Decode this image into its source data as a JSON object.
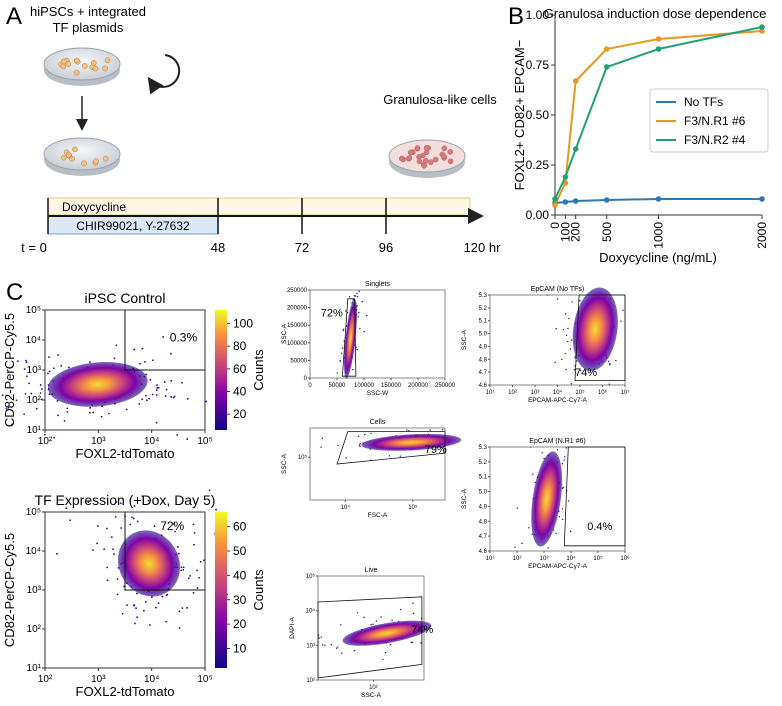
{
  "panel_a": {
    "letter": "A",
    "start_label": [
      "hiPSCs + integrated",
      "TF plasmids"
    ],
    "end_label": "Granulosa-like cells",
    "treatments": [
      "Doxycycline",
      "CHIR99021, Y-27632"
    ],
    "timepoints": [
      "t = 0",
      "48",
      "72",
      "96",
      "120 hr"
    ]
  },
  "chart_data": {
    "type": "line",
    "letter": "B",
    "title": "Granulosa induction dose dependence",
    "x_label": "Doxycycline (ng/mL)",
    "y_label": "FOXL2+ CD82+ EPCAM−",
    "x": [
      0,
      100,
      200,
      500,
      1000,
      2000
    ],
    "series": [
      {
        "name": "No TFs",
        "color": "#2a78b5",
        "values": [
          0.06,
          0.065,
          0.07,
          0.075,
          0.08,
          0.08
        ]
      },
      {
        "name": "F3/N.R1 #6",
        "color": "#e39a1e",
        "values": [
          0.05,
          0.16,
          0.67,
          0.83,
          0.88,
          0.92
        ]
      },
      {
        "name": "F3/N.R2 #4",
        "color": "#21a07a",
        "values": [
          0.08,
          0.19,
          0.33,
          0.74,
          0.83,
          0.94
        ]
      }
    ],
    "xlim": [
      0,
      2000
    ],
    "ylim": [
      0,
      1
    ],
    "xticks": [
      0,
      100,
      200,
      500,
      1000,
      2000
    ],
    "yticks": [
      {
        "value": 0,
        "label": "0.00"
      },
      {
        "value": 0.25,
        "label": "0.25"
      },
      {
        "value": 0.5,
        "label": "0.50"
      },
      {
        "value": 0.75,
        "label": "0.75"
      },
      {
        "value": 1,
        "label": "1.00"
      }
    ],
    "legend": "center right"
  },
  "panel_c": {
    "letter": "C",
    "density_plots": [
      {
        "title": "iPSC Control",
        "x_label": "FOXL2-tdTomato",
        "y_label": "CD82-PerCP-Cy5.5",
        "percent": "0.3%",
        "xlim": [
          100,
          100000
        ],
        "ylim": [
          10,
          100000
        ],
        "xticks": [
          {
            "value": 100,
            "label": "10²"
          },
          {
            "value": 1000,
            "label": "10³"
          },
          {
            "value": 10000,
            "label": "10⁴"
          },
          {
            "value": 100000,
            "label": "10⁵"
          }
        ],
        "yticks": [
          {
            "value": 10,
            "label": "10¹"
          },
          {
            "value": 100,
            "label": "10²"
          },
          {
            "value": 1000,
            "label": "10³"
          },
          {
            "value": 10000,
            "label": "10⁴"
          },
          {
            "value": 100000,
            "label": "10⁵"
          }
        ],
        "colorbar": {
          "label": "Counts",
          "lim": [
            6,
            112
          ],
          "ticks": [
            20,
            40,
            60,
            80,
            100
          ]
        }
      },
      {
        "title": "TF Expression (+Dox, Day 5)",
        "x_label": "FOXL2-tdTomato",
        "y_label": "CD82-PerCP-Cy5.5",
        "percent": "72%",
        "xlim": [
          100,
          100000
        ],
        "ylim": [
          10,
          100000
        ],
        "xticks": [
          {
            "value": 100,
            "label": "10²"
          },
          {
            "value": 1000,
            "label": "10³"
          },
          {
            "value": 10000,
            "label": "10⁴"
          },
          {
            "value": 100000,
            "label": "10⁵"
          }
        ],
        "yticks": [
          {
            "value": 10,
            "label": "10¹"
          },
          {
            "value": 100,
            "label": "10²"
          },
          {
            "value": 1000,
            "label": "10³"
          },
          {
            "value": 10000,
            "label": "10⁴"
          },
          {
            "value": 100000,
            "label": "10⁵"
          }
        ],
        "colorbar": {
          "label": "Counts",
          "lim": [
            2,
            66
          ],
          "ticks": [
            10,
            20,
            30,
            40,
            50,
            60
          ]
        }
      }
    ],
    "gating_plots": [
      {
        "title": "Singlets",
        "x_label": "SSC-W",
        "y_label": "SSC-A",
        "percent": "72%",
        "xscale": "linear",
        "yscale": "linear",
        "xlim": [
          0,
          250000
        ],
        "ylim": [
          0,
          250000
        ],
        "xticks": [
          0,
          50000,
          100000,
          150000,
          200000,
          250000
        ],
        "yticks": [
          0,
          50000,
          100000,
          150000,
          200000,
          250000
        ]
      },
      {
        "title": "Cells",
        "x_label": "FSC-A",
        "y_label": "SSC-A",
        "percent": "79%",
        "xscale": "log",
        "yscale": "log",
        "xlim": [
          3000,
          300000
        ],
        "ylim": [
          20000,
          300000
        ],
        "xticks": [
          {
            "value": 10000,
            "label": "10⁴"
          },
          {
            "value": 100000,
            "label": "10⁵"
          }
        ],
        "yticks": [
          {
            "value": 100000,
            "label": "10⁵"
          }
        ]
      },
      {
        "title": "Live",
        "x_label": "SSC-A",
        "y_label": "DAPI-A",
        "percent": "74%",
        "xscale": "log",
        "yscale": "log",
        "xlim": [
          30,
          300
        ],
        "ylim": [
          100,
          100000
        ],
        "xticks": [
          {
            "value": 100,
            "label": "10²"
          }
        ],
        "yticks": [
          {
            "value": 100,
            "label": "10²"
          },
          {
            "value": 1000,
            "label": "10³"
          },
          {
            "value": 10000,
            "label": "10⁴"
          },
          {
            "value": 100000,
            "label": "10⁵"
          }
        ]
      },
      {
        "title": "EpCAM (No TFs)",
        "x_label": "EPCAM-APC-Cy7-A",
        "y_label": "SSC-A",
        "percent": "74%",
        "xscale": "log",
        "yscale": "linear",
        "xlim": [
          10,
          10000000
        ],
        "ylim": [
          4.6,
          5.3
        ],
        "xticks": [
          {
            "value": 10,
            "label": "10¹"
          },
          {
            "value": 100,
            "label": "10²"
          },
          {
            "value": 1000,
            "label": "10³"
          },
          {
            "value": 10000,
            "label": "10⁴"
          },
          {
            "value": 100000,
            "label": "10⁵"
          },
          {
            "value": 1000000,
            "label": "10⁶"
          },
          {
            "value": 10000000,
            "label": "10⁷"
          }
        ],
        "yticks": [
          4.6,
          4.7,
          4.8,
          4.9,
          {
            "value": 5,
            "label": "5.0"
          },
          5.1,
          5.2,
          5.3
        ]
      },
      {
        "title": "EpCAM (N.R1 #6)",
        "x_label": "EPCAM-APC-Cy7-A",
        "y_label": "SSC-A",
        "percent": "0.4%",
        "xscale": "log",
        "yscale": "linear",
        "xlim": [
          10,
          1000000
        ],
        "ylim": [
          4.6,
          5.3
        ],
        "xticks": [
          {
            "value": 10,
            "label": "10¹"
          },
          {
            "value": 100,
            "label": "10²"
          },
          {
            "value": 1000,
            "label": "10³"
          },
          {
            "value": 10000,
            "label": "10⁴"
          },
          {
            "value": 100000,
            "label": "10⁵"
          },
          {
            "value": 1000000,
            "label": "10⁶"
          }
        ],
        "yticks": [
          4.6,
          4.7,
          4.8,
          4.9,
          {
            "value": 5,
            "label": "5.0"
          },
          5.1,
          5.2,
          5.3
        ]
      }
    ]
  }
}
